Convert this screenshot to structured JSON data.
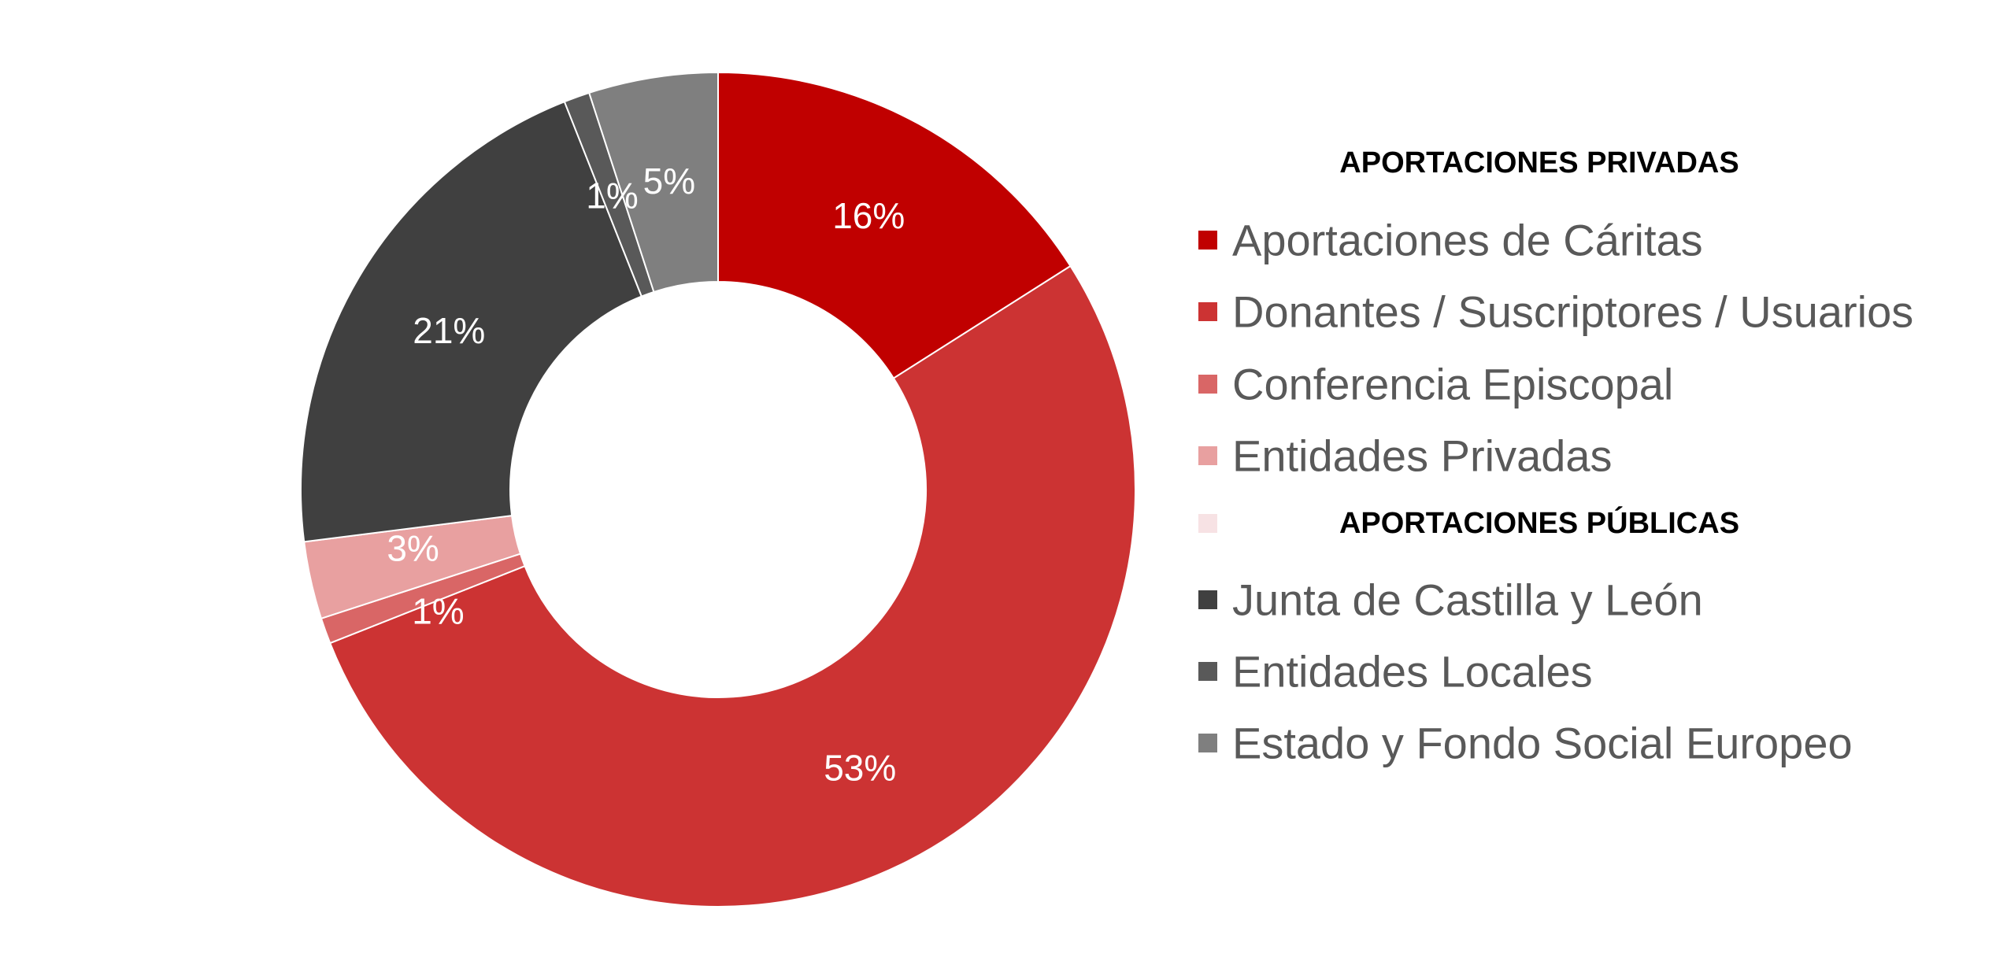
{
  "chart_data": {
    "type": "donut",
    "legend_placement": "right",
    "groups": [
      {
        "heading": "APORTACIONES PRIVADAS",
        "items": [
          {
            "label": "Aportaciones de Cáritas",
            "value": 16,
            "display": "16%",
            "color": "#C00000"
          },
          {
            "label": "Donantes / Suscriptores / Usuarios",
            "value": 53,
            "display": "53%",
            "color": "#CC3333"
          },
          {
            "label": "Conferencia Episcopal",
            "value": 1,
            "display": "1%",
            "color": "#D96666"
          },
          {
            "label": "Entidades Privadas",
            "value": 3,
            "display": "3%",
            "color": "#E8A0A0"
          }
        ]
      },
      {
        "heading": "APORTACIONES PÚBLICAS",
        "heading_swatch_color": "#F7E2E4",
        "items": [
          {
            "label": "Junta de Castilla y León",
            "value": 21,
            "display": "21%",
            "color": "#404040"
          },
          {
            "label": "Entidades Locales",
            "value": 1,
            "display": "1%",
            "color": "#595959"
          },
          {
            "label": "Estado y Fondo Social Europeo",
            "value": 5,
            "display": "5%",
            "color": "#7F7F7F"
          }
        ]
      }
    ],
    "slice_order": [
      "Aportaciones de Cáritas",
      "Donantes / Suscriptores / Usuarios",
      "Conferencia Episcopal",
      "Entidades Privadas",
      "Junta de Castilla y León",
      "Entidades Locales",
      "Estado y Fondo Social Europeo"
    ]
  }
}
